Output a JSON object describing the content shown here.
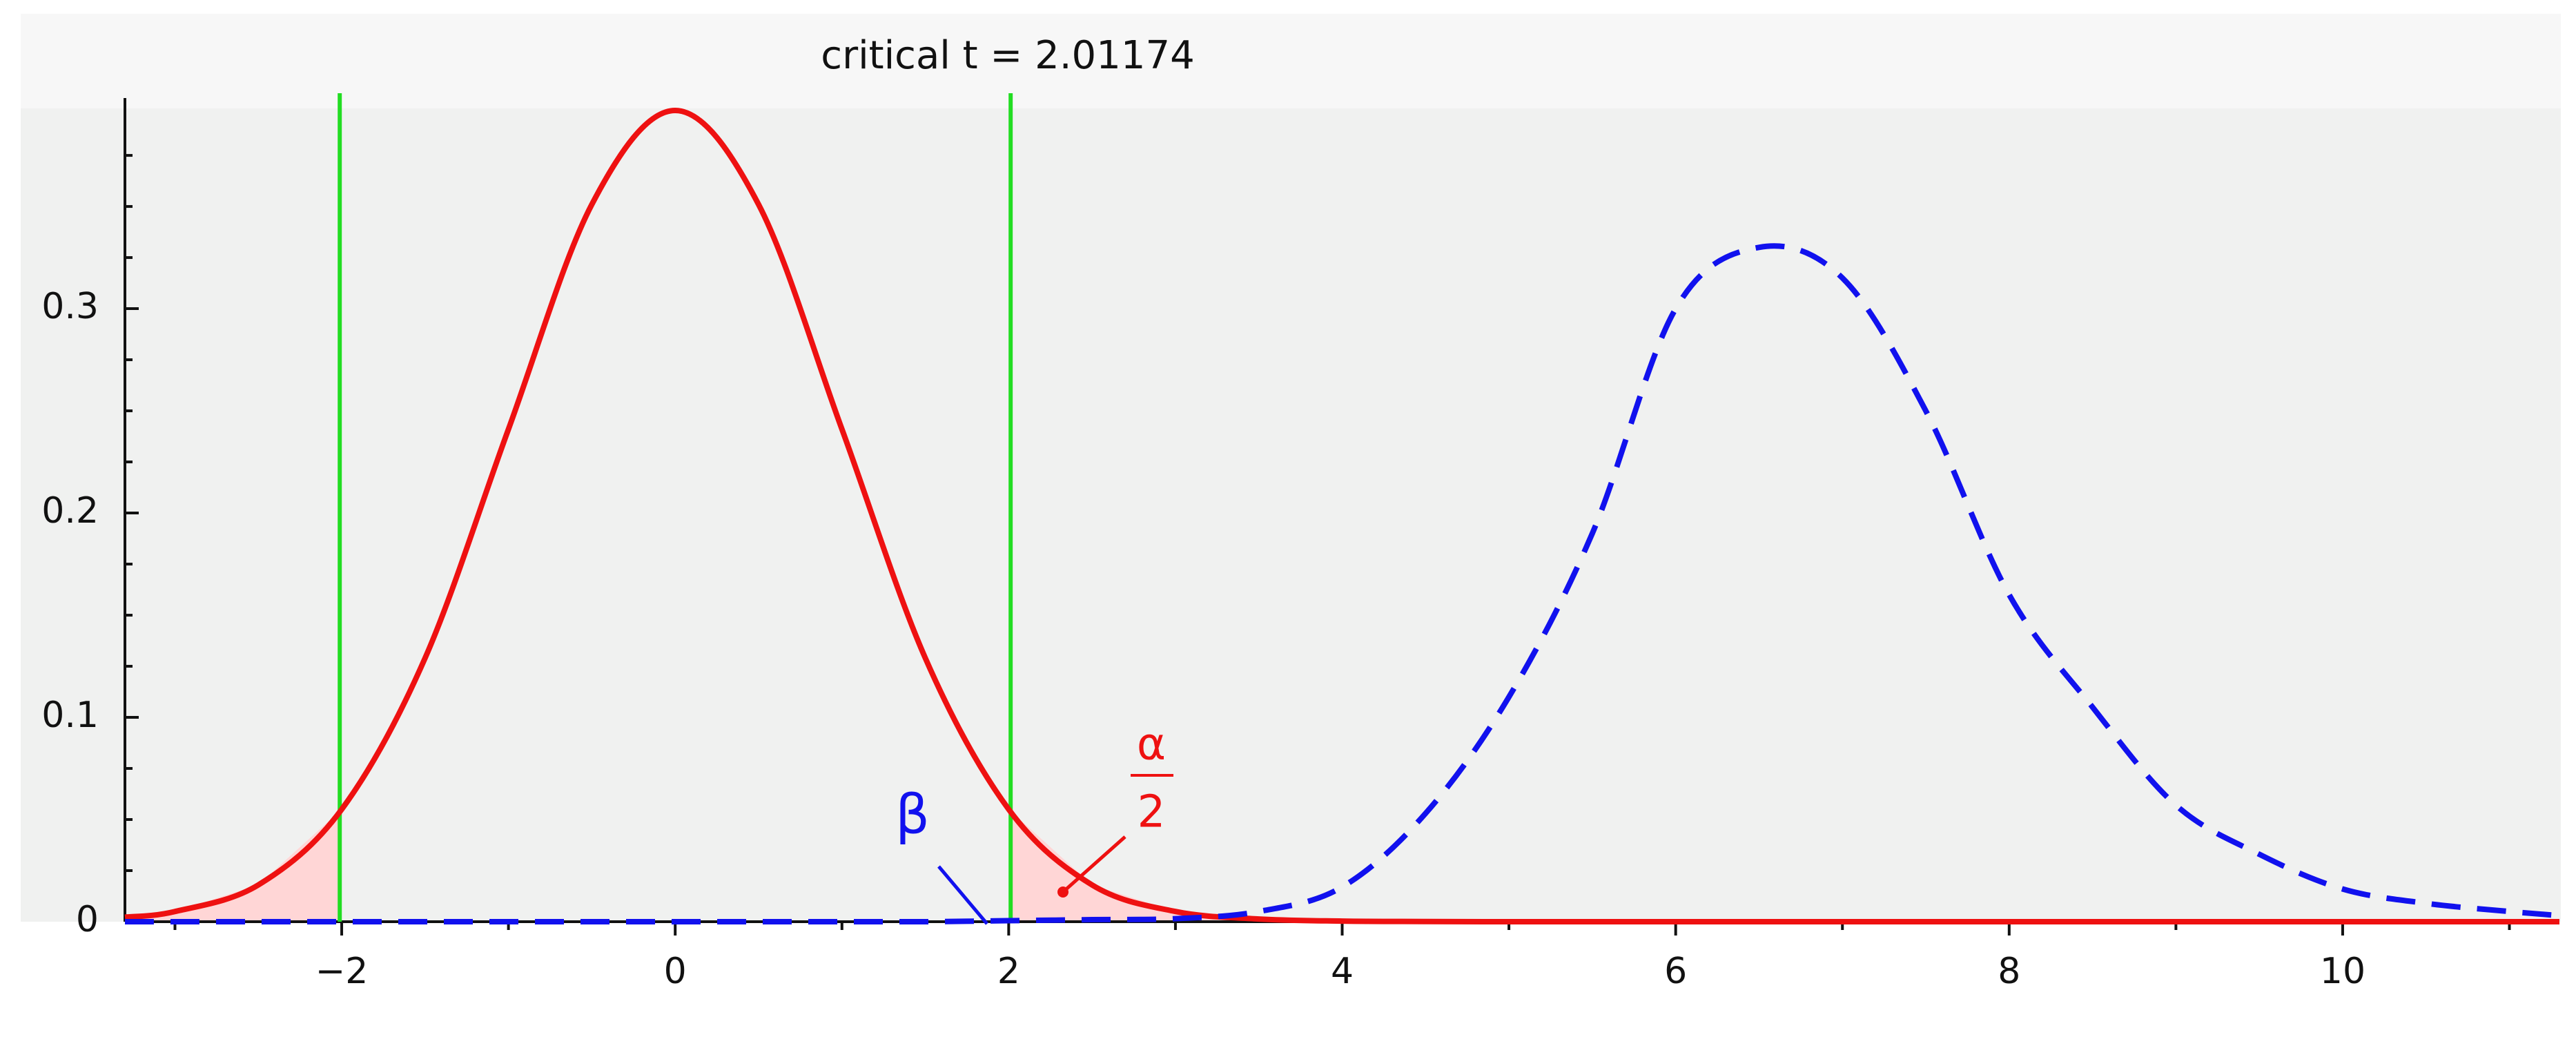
{
  "chart_data": {
    "type": "line",
    "title": "critical t =  2.01174",
    "x": [
      -3.3,
      -3,
      -2.5,
      -2,
      -1.5,
      -1,
      -0.5,
      0,
      0.5,
      1,
      1.5,
      2,
      2.5,
      3,
      3.5,
      4,
      4.5,
      5,
      5.5,
      6,
      6.5,
      7,
      7.5,
      8,
      8.5,
      9,
      9.5,
      10,
      10.5,
      11,
      11.3
    ],
    "series": [
      {
        "color": "#ee1111",
        "dash": false,
        "fill": "#ffd6d6",
        "values": [
          0.0022,
          0.005,
          0.018,
          0.055,
          0.129,
          0.241,
          0.351,
          0.397,
          0.351,
          0.241,
          0.129,
          0.055,
          0.018,
          0.005,
          0.0013,
          0.0003,
          0.0001,
          0,
          0,
          0,
          0,
          0,
          0,
          0,
          0,
          0,
          0,
          0,
          0,
          0,
          0
        ]
      },
      {
        "color": "#1111ee",
        "dash": true,
        "values": [
          0,
          0,
          0,
          0,
          0,
          0,
          0,
          0,
          0,
          0,
          0,
          0.0005,
          0.001,
          0.0015,
          0.005,
          0.017,
          0.053,
          0.11,
          0.19,
          0.3,
          0.33,
          0.315,
          0.25,
          0.16,
          0.105,
          0.057,
          0.033,
          0.016,
          0.009,
          0.005,
          0.003
        ]
      }
    ],
    "critical_values": [
      -2.01174,
      2.01174
    ],
    "critical_color": "#22dd22",
    "annotations": [
      "β",
      "α",
      "2"
    ],
    "xlim": [
      -3.3,
      11.3
    ],
    "xticks": [
      {
        "value": -2,
        "label": "−2"
      },
      0,
      2,
      4,
      6,
      8,
      10
    ],
    "xticks_minor": [
      -3,
      -1,
      1,
      3,
      5,
      7,
      9,
      11
    ],
    "ylim": [
      0,
      0.398
    ],
    "yticks": [
      0,
      0.1,
      0.2,
      0.3
    ],
    "yticks_minor": [
      0.025,
      0.05,
      0.075,
      0.125,
      0.15,
      0.175,
      0.225,
      0.25,
      0.275,
      0.325,
      0.35,
      0.375
    ]
  }
}
